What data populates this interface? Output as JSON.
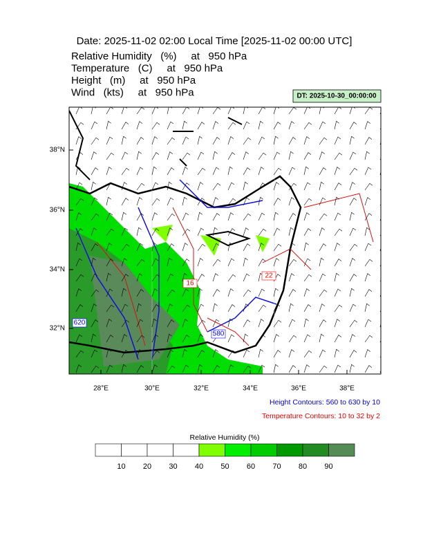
{
  "header": {
    "title": "Date: 2025-11-02  02:00 Local Time [2025-11-02  00:00 UTC]",
    "lines": [
      "Relative Humidity   (%)     at   950 hPa",
      "Temperature   (C)     at   950 hPa",
      "Height   (m)     at   950 hPa",
      "Wind   (kts)     at   950 hPa"
    ],
    "dt_label": "DT: 2025-10-30_00:00:00"
  },
  "map": {
    "lat_labels": [
      "38°N",
      "36°N",
      "34°N",
      "32°N"
    ],
    "lon_labels": [
      "28°E",
      "30°E",
      "32°E",
      "34°E",
      "36°E",
      "38°E"
    ],
    "contour_labels": [
      {
        "text": "580",
        "color": "blue"
      },
      {
        "text": "620",
        "color": "blue"
      },
      {
        "text": "22",
        "color": "red"
      },
      {
        "text": "16",
        "color": "red"
      }
    ]
  },
  "notes": [
    {
      "text": "Height Contours: 560 to 630 by 10",
      "color": "#0000ee"
    },
    {
      "text": "Temperature Contours: 10 to 32 by 2",
      "color": "#ee0000"
    }
  ],
  "colorbar": {
    "title": "Relative Humidity  (%)",
    "ticks": [
      10,
      20,
      30,
      40,
      50,
      60,
      70,
      80,
      90
    ],
    "colors": [
      "#ffffff",
      "#ffffff",
      "#ffffff",
      "#ffffff",
      "#80ff00",
      "#00ee00",
      "#00cc00",
      "#009900",
      "#228b22",
      "#558b55"
    ]
  }
}
